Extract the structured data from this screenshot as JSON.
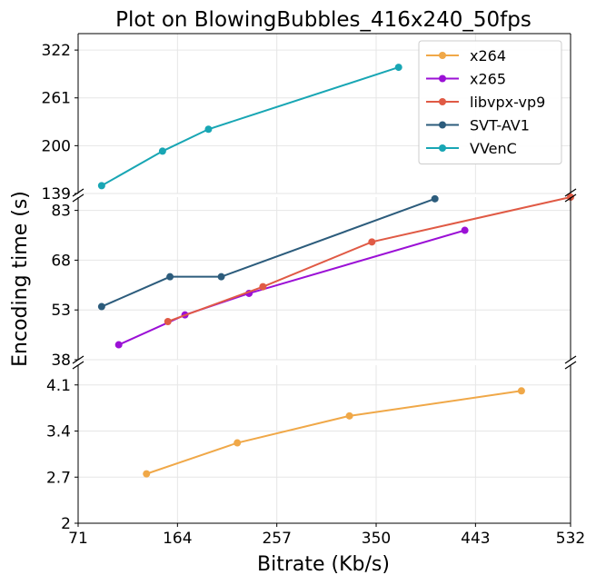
{
  "chart_data": {
    "type": "line",
    "title": "Plot on BlowingBubbles_416x240_50fps",
    "xlabel": "Bitrate (Kb/s)",
    "ylabel": "Encoding time (s)",
    "x_ticks": [
      "71",
      "164",
      "257",
      "350",
      "443",
      "532"
    ],
    "xlim": [
      71,
      532
    ],
    "grid": true,
    "legend_position": "top-right",
    "panels": [
      {
        "name": "top",
        "ylim": [
          139,
          343
        ],
        "y_ticks": [
          "139",
          "200",
          "261",
          "322"
        ]
      },
      {
        "name": "middle",
        "ylim": [
          38,
          87
        ],
        "y_ticks": [
          "38",
          "53",
          "68",
          "83"
        ]
      },
      {
        "name": "bottom",
        "ylim": [
          2,
          4.4
        ],
        "y_ticks": [
          "2",
          "2.7",
          "3.4",
          "4.1"
        ]
      }
    ],
    "series": [
      {
        "name": "x264",
        "color": "#f0a848",
        "panel": "bottom",
        "x": [
          135,
          220,
          325,
          486
        ],
        "y": [
          2.75,
          3.22,
          3.63,
          4.01
        ]
      },
      {
        "name": "x265",
        "color": "#9b10d6",
        "panel": "middle",
        "x": [
          109,
          171,
          231,
          433
        ],
        "y": [
          42.5,
          51.5,
          58.0,
          77.0
        ]
      },
      {
        "name": "libvpx-vp9",
        "color": "#e05a45",
        "panel": "middle",
        "x": [
          155,
          244,
          346,
          534
        ],
        "y": [
          49.5,
          60.0,
          73.5,
          87.0
        ]
      },
      {
        "name": "SVT-AV1",
        "color": "#2c5c7c",
        "panel": "middle",
        "x": [
          93,
          157,
          205,
          405
        ],
        "y": [
          54.0,
          63.0,
          63.0,
          86.5
        ]
      },
      {
        "name": "VVenC",
        "color": "#18a6b4",
        "panel": "top",
        "x": [
          93,
          150,
          193,
          371
        ],
        "y": [
          149.0,
          193.0,
          221.0,
          300.0
        ]
      }
    ]
  }
}
